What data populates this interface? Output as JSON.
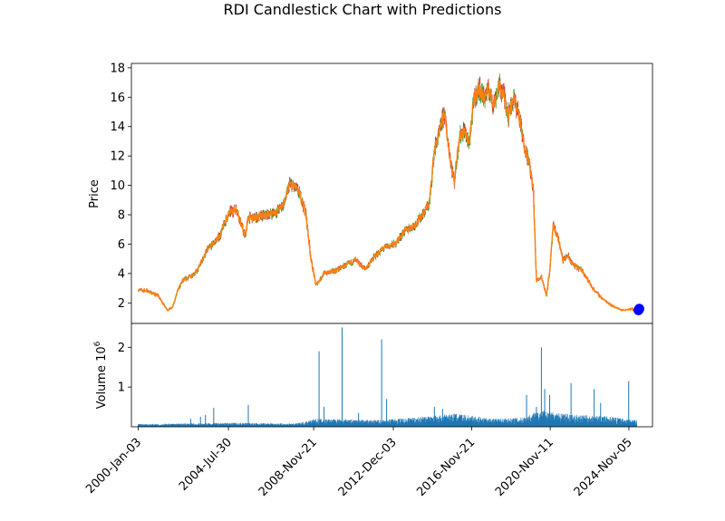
{
  "chart_data": {
    "type": "candlestick",
    "title": "RDI Candlestick Chart with Predictions",
    "x_axis": {
      "type": "date",
      "tick_labels": [
        "2000-Jan-03",
        "2004-Jul-30",
        "2008-Nov-21",
        "2012-Dec-03",
        "2016-Nov-21",
        "2020-Nov-11",
        "2024-Nov-05"
      ],
      "tick_positions": [
        "2000-01-03",
        "2004-07-30",
        "2008-11-21",
        "2012-12-03",
        "2016-11-21",
        "2020-11-11",
        "2024-11-05"
      ],
      "range": [
        "1999-09-01",
        "2026-01-15"
      ]
    },
    "price_panel": {
      "ylabel": "Price",
      "ylim": [
        0.6,
        18.3
      ],
      "yticks": [
        2,
        4,
        6,
        8,
        10,
        12,
        14,
        16,
        18
      ],
      "colors": {
        "close_line": "#ff7f0e",
        "up": "#2ca02c",
        "down": "#d62728"
      },
      "series_close": [
        {
          "x": "2000-01-03",
          "y": 2.9
        },
        {
          "x": "2000-07-01",
          "y": 2.8
        },
        {
          "x": "2001-01-01",
          "y": 2.5
        },
        {
          "x": "2001-07-01",
          "y": 1.5
        },
        {
          "x": "2001-10-01",
          "y": 1.7
        },
        {
          "x": "2002-01-01",
          "y": 2.8
        },
        {
          "x": "2002-04-01",
          "y": 3.5
        },
        {
          "x": "2002-10-01",
          "y": 3.9
        },
        {
          "x": "2003-01-01",
          "y": 4.2
        },
        {
          "x": "2003-07-01",
          "y": 5.6
        },
        {
          "x": "2003-12-01",
          "y": 6.2
        },
        {
          "x": "2004-03-01",
          "y": 6.6
        },
        {
          "x": "2004-06-01",
          "y": 7.6
        },
        {
          "x": "2004-09-01",
          "y": 8.2
        },
        {
          "x": "2005-01-01",
          "y": 8.4
        },
        {
          "x": "2005-03-01",
          "y": 7.6
        },
        {
          "x": "2005-06-01",
          "y": 6.5
        },
        {
          "x": "2005-08-01",
          "y": 7.8
        },
        {
          "x": "2006-01-01",
          "y": 7.8
        },
        {
          "x": "2006-07-01",
          "y": 8.0
        },
        {
          "x": "2007-01-01",
          "y": 8.2
        },
        {
          "x": "2007-06-01",
          "y": 8.8
        },
        {
          "x": "2007-09-01",
          "y": 10.1
        },
        {
          "x": "2008-01-01",
          "y": 9.8
        },
        {
          "x": "2008-04-01",
          "y": 9.2
        },
        {
          "x": "2008-07-01",
          "y": 8.0
        },
        {
          "x": "2008-10-01",
          "y": 5.0
        },
        {
          "x": "2009-01-01",
          "y": 3.2
        },
        {
          "x": "2009-06-01",
          "y": 4.0
        },
        {
          "x": "2010-01-01",
          "y": 4.2
        },
        {
          "x": "2010-06-01",
          "y": 4.5
        },
        {
          "x": "2011-01-01",
          "y": 4.9
        },
        {
          "x": "2011-07-01",
          "y": 4.3
        },
        {
          "x": "2012-01-01",
          "y": 5.2
        },
        {
          "x": "2012-07-01",
          "y": 5.8
        },
        {
          "x": "2013-01-01",
          "y": 6.0
        },
        {
          "x": "2013-07-01",
          "y": 6.9
        },
        {
          "x": "2014-01-01",
          "y": 7.3
        },
        {
          "x": "2014-07-01",
          "y": 8.2
        },
        {
          "x": "2014-10-01",
          "y": 8.8
        },
        {
          "x": "2015-01-01",
          "y": 12.5
        },
        {
          "x": "2015-04-01",
          "y": 13.5
        },
        {
          "x": "2015-07-01",
          "y": 15.0
        },
        {
          "x": "2015-10-01",
          "y": 12.3
        },
        {
          "x": "2016-01-01",
          "y": 10.2
        },
        {
          "x": "2016-04-01",
          "y": 13.2
        },
        {
          "x": "2016-07-01",
          "y": 13.8
        },
        {
          "x": "2016-10-01",
          "y": 12.8
        },
        {
          "x": "2017-01-01",
          "y": 15.8
        },
        {
          "x": "2017-04-01",
          "y": 16.6
        },
        {
          "x": "2017-07-01",
          "y": 16.0
        },
        {
          "x": "2017-10-01",
          "y": 16.5
        },
        {
          "x": "2018-01-01",
          "y": 15.5
        },
        {
          "x": "2018-04-01",
          "y": 16.8
        },
        {
          "x": "2018-07-01",
          "y": 16.2
        },
        {
          "x": "2018-10-01",
          "y": 14.8
        },
        {
          "x": "2019-01-01",
          "y": 16.0
        },
        {
          "x": "2019-04-01",
          "y": 15.0
        },
        {
          "x": "2019-07-01",
          "y": 13.0
        },
        {
          "x": "2019-10-01",
          "y": 11.8
        },
        {
          "x": "2020-01-01",
          "y": 9.8
        },
        {
          "x": "2020-03-01",
          "y": 3.5
        },
        {
          "x": "2020-06-01",
          "y": 3.8
        },
        {
          "x": "2020-09-01",
          "y": 2.5
        },
        {
          "x": "2020-11-11",
          "y": 4.5
        },
        {
          "x": "2021-01-01",
          "y": 7.2
        },
        {
          "x": "2021-04-01",
          "y": 6.5
        },
        {
          "x": "2021-07-01",
          "y": 4.9
        },
        {
          "x": "2021-10-01",
          "y": 5.2
        },
        {
          "x": "2022-01-01",
          "y": 4.6
        },
        {
          "x": "2022-07-01",
          "y": 4.2
        },
        {
          "x": "2023-01-01",
          "y": 3.0
        },
        {
          "x": "2023-07-01",
          "y": 2.3
        },
        {
          "x": "2024-01-01",
          "y": 1.8
        },
        {
          "x": "2024-07-01",
          "y": 1.5
        },
        {
          "x": "2025-01-01",
          "y": 1.6
        },
        {
          "x": "2025-04-01",
          "y": 1.4
        }
      ],
      "predictions": [
        {
          "x": "2025-05-01",
          "y": 1.5,
          "color": "#0000ff"
        },
        {
          "x": "2025-05-15",
          "y": 1.6,
          "color": "#0000ff"
        }
      ]
    },
    "volume_panel": {
      "ylabel": "Volume",
      "unit_label": "10",
      "unit_exponent": "6",
      "ylim": [
        0,
        2.6
      ],
      "yticks": [
        1,
        2
      ],
      "ytick_labels": [
        "1",
        "2"
      ],
      "color": "#1f77b4",
      "spikes": [
        {
          "x": "2002-09-01",
          "y": 0.2
        },
        {
          "x": "2003-03-01",
          "y": 0.25
        },
        {
          "x": "2003-06-01",
          "y": 0.3
        },
        {
          "x": "2003-11-01",
          "y": 0.48
        },
        {
          "x": "2005-08-01",
          "y": 0.55
        },
        {
          "x": "2009-03-01",
          "y": 1.9
        },
        {
          "x": "2009-06-01",
          "y": 0.5
        },
        {
          "x": "2010-05-01",
          "y": 2.5
        },
        {
          "x": "2011-03-01",
          "y": 0.35
        },
        {
          "x": "2012-05-01",
          "y": 2.2
        },
        {
          "x": "2012-08-01",
          "y": 0.7
        },
        {
          "x": "2015-01-01",
          "y": 0.5
        },
        {
          "x": "2015-06-01",
          "y": 0.45
        },
        {
          "x": "2019-09-01",
          "y": 0.8
        },
        {
          "x": "2020-03-01",
          "y": 0.5
        },
        {
          "x": "2020-06-01",
          "y": 2.0
        },
        {
          "x": "2020-08-01",
          "y": 0.95
        },
        {
          "x": "2020-11-01",
          "y": 0.8
        },
        {
          "x": "2021-12-01",
          "y": 1.1
        },
        {
          "x": "2023-02-01",
          "y": 0.95
        },
        {
          "x": "2023-06-01",
          "y": 0.6
        },
        {
          "x": "2024-11-01",
          "y": 1.15
        }
      ],
      "baseline": [
        {
          "x": "2000-01-03",
          "y": 0.04
        },
        {
          "x": "2002-06-01",
          "y": 0.05
        },
        {
          "x": "2005-01-01",
          "y": 0.06
        },
        {
          "x": "2008-01-01",
          "y": 0.05
        },
        {
          "x": "2009-01-01",
          "y": 0.12
        },
        {
          "x": "2012-01-01",
          "y": 0.1
        },
        {
          "x": "2014-06-01",
          "y": 0.15
        },
        {
          "x": "2016-01-01",
          "y": 0.2
        },
        {
          "x": "2018-01-01",
          "y": 0.12
        },
        {
          "x": "2019-06-01",
          "y": 0.14
        },
        {
          "x": "2020-06-01",
          "y": 0.25
        },
        {
          "x": "2022-01-01",
          "y": 0.18
        },
        {
          "x": "2024-01-01",
          "y": 0.15
        },
        {
          "x": "2025-04-01",
          "y": 0.1
        }
      ]
    }
  }
}
